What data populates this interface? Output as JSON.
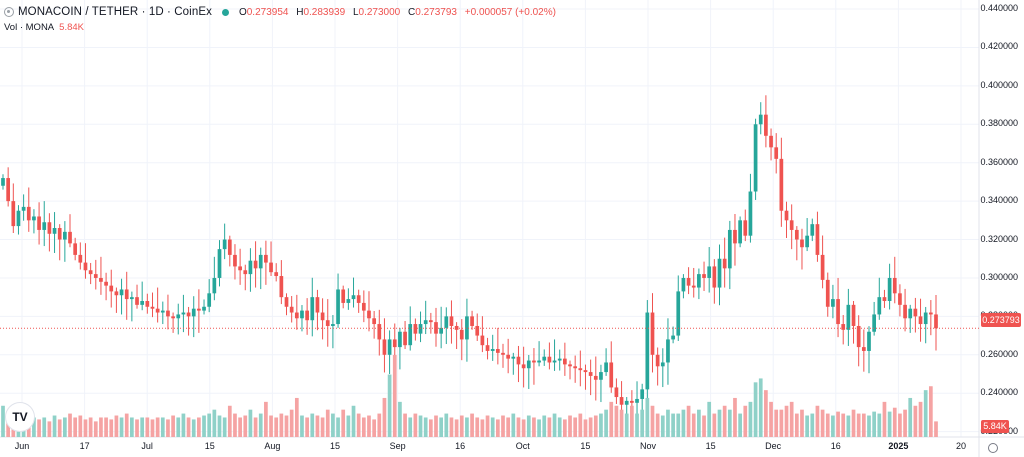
{
  "header": {
    "title": "MONACOIN / TETHER · 1D · CoinEx",
    "open_label": "O",
    "open": "0.273954",
    "high_label": "H",
    "high": "0.283939",
    "low_label": "L",
    "low": "0.273000",
    "close_label": "C",
    "close": "0.273793",
    "change": "+0.000057 (+0.02%)"
  },
  "volume": {
    "label": "Vol · MONA",
    "value": "5.84K"
  },
  "price_tag": "0.273793",
  "volume_tag": "5.84K",
  "logo_text": "TV",
  "colors": {
    "up": "#26a69a",
    "down": "#ef5350",
    "up_vol": "#8fd1c8",
    "down_vol": "#f5a3a3",
    "grid": "#f0f3fa"
  },
  "chart_data": {
    "type": "candlestick",
    "title": "MONACOIN / TETHER · 1D · CoinEx",
    "y_ticks": [
      "0.440000",
      "0.420000",
      "0.400000",
      "0.380000",
      "0.360000",
      "0.340000",
      "0.320000",
      "0.300000",
      "0.280000",
      "0.260000",
      "0.240000",
      "0.220000"
    ],
    "ylim": [
      0.2172,
      0.4447
    ],
    "x_ticks": [
      {
        "label": "Jun",
        "bold": false
      },
      {
        "label": "17",
        "bold": false
      },
      {
        "label": "Jul",
        "bold": false
      },
      {
        "label": "15",
        "bold": false
      },
      {
        "label": "Aug",
        "bold": false
      },
      {
        "label": "15",
        "bold": false
      },
      {
        "label": "Sep",
        "bold": false
      },
      {
        "label": "16",
        "bold": false
      },
      {
        "label": "Oct",
        "bold": false
      },
      {
        "label": "15",
        "bold": false
      },
      {
        "label": "Nov",
        "bold": false
      },
      {
        "label": "15",
        "bold": false
      },
      {
        "label": "Dec",
        "bold": false
      },
      {
        "label": "16",
        "bold": false
      },
      {
        "label": "2025",
        "bold": true
      },
      {
        "label": "20",
        "bold": false
      }
    ],
    "closes": [
      0.352,
      0.34,
      0.327,
      0.335,
      0.337,
      0.33,
      0.332,
      0.325,
      0.329,
      0.323,
      0.326,
      0.32,
      0.324,
      0.318,
      0.312,
      0.308,
      0.304,
      0.302,
      0.3,
      0.298,
      0.296,
      0.293,
      0.291,
      0.294,
      0.289,
      0.29,
      0.286,
      0.288,
      0.285,
      0.284,
      0.282,
      0.283,
      0.28,
      0.279,
      0.281,
      0.282,
      0.28,
      0.284,
      0.283,
      0.285,
      0.292,
      0.3,
      0.315,
      0.32,
      0.312,
      0.306,
      0.304,
      0.302,
      0.309,
      0.305,
      0.312,
      0.308,
      0.303,
      0.301,
      0.29,
      0.285,
      0.282,
      0.279,
      0.283,
      0.278,
      0.29,
      0.282,
      0.278,
      0.275,
      0.276,
      0.294,
      0.287,
      0.289,
      0.291,
      0.287,
      0.283,
      0.279,
      0.276,
      0.268,
      0.26,
      0.268,
      0.264,
      0.272,
      0.265,
      0.276,
      0.271,
      0.276,
      0.278,
      0.277,
      0.271,
      0.274,
      0.28,
      0.275,
      0.273,
      0.268,
      0.28,
      0.275,
      0.27,
      0.265,
      0.262,
      0.263,
      0.261,
      0.26,
      0.258,
      0.259,
      0.255,
      0.253,
      0.257,
      0.256,
      0.257,
      0.259,
      0.256,
      0.257,
      0.258,
      0.255,
      0.254,
      0.253,
      0.252,
      0.251,
      0.249,
      0.247,
      0.251,
      0.256,
      0.243,
      0.238,
      0.234,
      0.236,
      0.235,
      0.237,
      0.242,
      0.282,
      0.26,
      0.254,
      0.256,
      0.268,
      0.27,
      0.293,
      0.3,
      0.296,
      0.295,
      0.302,
      0.3,
      0.306,
      0.295,
      0.31,
      0.305,
      0.325,
      0.318,
      0.33,
      0.322,
      0.345,
      0.38,
      0.385,
      0.374,
      0.368,
      0.362,
      0.335,
      0.33,
      0.325,
      0.32,
      0.316,
      0.322,
      0.328,
      0.312,
      0.299,
      0.285,
      0.289,
      0.276,
      0.273,
      0.286,
      0.275,
      0.264,
      0.262,
      0.272,
      0.281,
      0.29,
      0.288,
      0.3,
      0.292,
      0.286,
      0.279,
      0.284,
      0.28,
      0.276,
      0.282,
      0.281,
      0.2738
    ],
    "volumes": [
      0.8,
      0.45,
      0.55,
      0.5,
      0.6,
      0.7,
      0.5,
      0.45,
      0.5,
      0.4,
      0.55,
      0.45,
      0.5,
      0.6,
      0.5,
      0.55,
      0.45,
      0.5,
      0.4,
      0.5,
      0.5,
      0.45,
      0.55,
      0.5,
      0.6,
      0.5,
      0.45,
      0.5,
      0.5,
      0.45,
      0.5,
      0.5,
      0.45,
      0.55,
      0.5,
      0.6,
      0.5,
      0.45,
      0.5,
      0.55,
      0.6,
      0.7,
      0.55,
      0.5,
      0.8,
      0.6,
      0.5,
      0.55,
      0.7,
      0.5,
      0.6,
      0.9,
      0.55,
      0.5,
      0.6,
      0.55,
      0.7,
      1.0,
      0.55,
      0.5,
      0.6,
      0.55,
      0.5,
      0.7,
      0.6,
      0.5,
      0.7,
      0.55,
      0.8,
      0.6,
      0.5,
      0.55,
      0.45,
      0.6,
      1.0,
      1.6,
      2.1,
      0.9,
      0.6,
      0.5,
      0.6,
      0.55,
      0.5,
      0.45,
      0.55,
      0.5,
      0.6,
      0.5,
      0.45,
      0.55,
      0.5,
      0.6,
      0.5,
      0.45,
      0.55,
      0.5,
      0.45,
      0.55,
      0.5,
      0.6,
      0.5,
      0.45,
      0.55,
      0.5,
      0.45,
      0.55,
      0.5,
      0.6,
      0.5,
      0.45,
      0.55,
      0.5,
      0.6,
      0.45,
      0.5,
      0.55,
      0.6,
      0.7,
      0.9,
      0.8,
      0.7,
      0.6,
      0.8,
      0.6,
      0.7,
      1.0,
      0.8,
      0.6,
      0.55,
      0.7,
      0.6,
      0.6,
      0.7,
      0.8,
      0.6,
      0.7,
      0.55,
      0.9,
      0.6,
      0.7,
      0.8,
      0.7,
      1.0,
      0.6,
      0.8,
      0.9,
      1.4,
      1.5,
      1.2,
      0.9,
      0.7,
      0.7,
      0.8,
      0.9,
      0.6,
      0.7,
      0.55,
      0.6,
      0.8,
      0.7,
      0.6,
      0.55,
      0.65,
      0.6,
      0.55,
      0.7,
      0.6,
      0.6,
      0.55,
      0.65,
      0.6,
      0.9,
      0.65,
      0.75,
      0.6,
      0.7,
      1.0,
      0.8,
      0.9,
      1.2,
      1.3,
      0.4
    ]
  }
}
